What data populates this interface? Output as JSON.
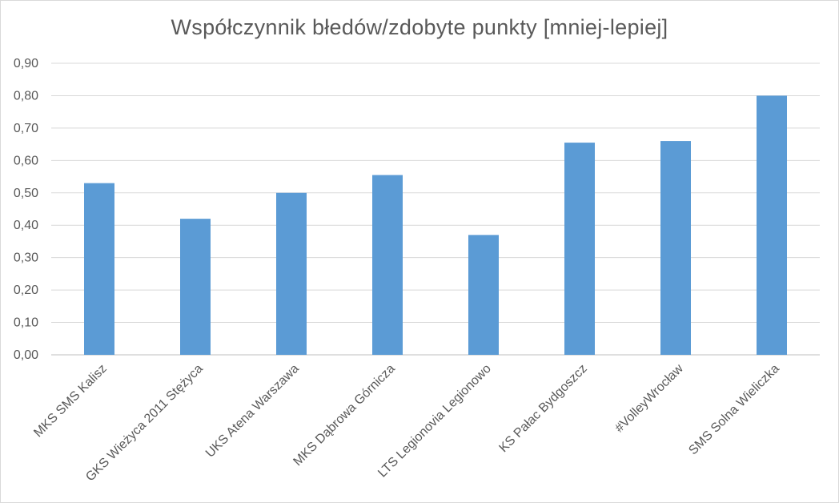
{
  "chart_data": {
    "type": "bar",
    "title": "Współczynnik błedów/zdobyte punkty [mniej-lepiej]",
    "categories": [
      "MKS SMS Kalisz",
      "GKS Wieżyca 2011 Stężyca",
      "UKS Atena Warszawa",
      "MKS Dąbrowa Górnicza",
      "LTS Legionovia Legionowo",
      "KS Pałac Bydgoszcz",
      "#VolleyWrocław",
      "SMS Solna Wieliczka"
    ],
    "values": [
      0.53,
      0.42,
      0.5,
      0.555,
      0.37,
      0.655,
      0.66,
      0.8
    ],
    "y_ticks": [
      "0,00",
      "0,10",
      "0,20",
      "0,30",
      "0,40",
      "0,50",
      "0,60",
      "0,70",
      "0,80",
      "0,90"
    ],
    "ylim": [
      0,
      0.9
    ],
    "grid": true,
    "legend": "none",
    "colors": {
      "bar": "#5b9bd5",
      "grid": "#d9d9d9",
      "text": "#595959"
    }
  }
}
